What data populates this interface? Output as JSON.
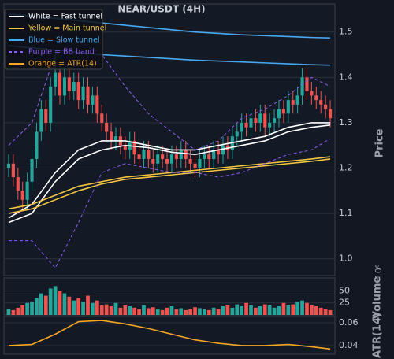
{
  "chart_data": {
    "type": "candlestick",
    "title": "NEAR/USDT (4H)",
    "y_label": "Price",
    "up_color": "#26a69a",
    "down_color": "#ef5350",
    "open": [
      1.2,
      1.21,
      1.18,
      1.15,
      1.13,
      1.17,
      1.22,
      1.28,
      1.33,
      1.3,
      1.38,
      1.41,
      1.36,
      1.4,
      1.37,
      1.39,
      1.35,
      1.38,
      1.34,
      1.36,
      1.32,
      1.3,
      1.28,
      1.26,
      1.27,
      1.25,
      1.24,
      1.26,
      1.23,
      1.22,
      1.24,
      1.22,
      1.21,
      1.23,
      1.22,
      1.21,
      1.23,
      1.22,
      1.24,
      1.22,
      1.21,
      1.2,
      1.22,
      1.23,
      1.22,
      1.24,
      1.23,
      1.25,
      1.24,
      1.27,
      1.28,
      1.3,
      1.29,
      1.31,
      1.3,
      1.32,
      1.29,
      1.3,
      1.31,
      1.33,
      1.32,
      1.35,
      1.34,
      1.36,
      1.4,
      1.37,
      1.36,
      1.35,
      1.34,
      1.33
    ],
    "high": [
      1.23,
      1.23,
      1.2,
      1.17,
      1.19,
      1.24,
      1.3,
      1.35,
      1.35,
      1.4,
      1.46,
      1.43,
      1.42,
      1.42,
      1.41,
      1.41,
      1.4,
      1.4,
      1.38,
      1.38,
      1.34,
      1.32,
      1.3,
      1.29,
      1.29,
      1.27,
      1.28,
      1.28,
      1.25,
      1.26,
      1.26,
      1.24,
      1.25,
      1.25,
      1.24,
      1.25,
      1.25,
      1.26,
      1.26,
      1.24,
      1.23,
      1.24,
      1.25,
      1.25,
      1.26,
      1.26,
      1.27,
      1.27,
      1.29,
      1.3,
      1.32,
      1.32,
      1.33,
      1.33,
      1.34,
      1.34,
      1.32,
      1.33,
      1.35,
      1.35,
      1.37,
      1.37,
      1.38,
      1.42,
      1.42,
      1.39,
      1.38,
      1.37,
      1.36,
      1.35
    ],
    "low": [
      1.18,
      1.16,
      1.13,
      1.11,
      1.11,
      1.15,
      1.2,
      1.26,
      1.28,
      1.28,
      1.36,
      1.34,
      1.34,
      1.35,
      1.35,
      1.33,
      1.33,
      1.32,
      1.32,
      1.3,
      1.28,
      1.26,
      1.24,
      1.24,
      1.23,
      1.22,
      1.22,
      1.21,
      1.2,
      1.2,
      1.2,
      1.19,
      1.19,
      1.2,
      1.19,
      1.19,
      1.2,
      1.2,
      1.2,
      1.19,
      1.18,
      1.18,
      1.2,
      1.2,
      1.2,
      1.21,
      1.21,
      1.22,
      1.22,
      1.25,
      1.26,
      1.27,
      1.27,
      1.28,
      1.28,
      1.27,
      1.27,
      1.28,
      1.29,
      1.3,
      1.3,
      1.32,
      1.32,
      1.34,
      1.35,
      1.34,
      1.33,
      1.32,
      1.31,
      1.29
    ],
    "close": [
      1.21,
      1.18,
      1.15,
      1.13,
      1.17,
      1.22,
      1.28,
      1.33,
      1.3,
      1.38,
      1.41,
      1.36,
      1.4,
      1.37,
      1.39,
      1.35,
      1.38,
      1.34,
      1.36,
      1.32,
      1.3,
      1.28,
      1.26,
      1.27,
      1.25,
      1.24,
      1.26,
      1.23,
      1.22,
      1.24,
      1.22,
      1.21,
      1.23,
      1.22,
      1.21,
      1.23,
      1.22,
      1.24,
      1.22,
      1.21,
      1.2,
      1.22,
      1.23,
      1.22,
      1.24,
      1.23,
      1.25,
      1.24,
      1.27,
      1.28,
      1.3,
      1.29,
      1.31,
      1.3,
      1.32,
      1.29,
      1.3,
      1.31,
      1.33,
      1.32,
      1.35,
      1.34,
      1.36,
      1.4,
      1.37,
      1.36,
      1.35,
      1.34,
      1.33,
      1.31
    ],
    "ylim": [
      0.963,
      1.562
    ],
    "yticks": [
      {
        "value": 1,
        "label": "1.0"
      },
      1.1,
      1.2,
      1.3,
      1.4,
      1.5
    ],
    "overlay_x": [
      0,
      5,
      10,
      15,
      20,
      25,
      30,
      35,
      40,
      45,
      50,
      55,
      60,
      65,
      69
    ],
    "overlays": [
      {
        "name": "White = Fast tunnel",
        "color": "#ffffff",
        "dashed": false,
        "lines": [
          [
            1.09,
            1.12,
            1.19,
            1.24,
            1.26,
            1.26,
            1.25,
            1.24,
            1.24,
            1.25,
            1.26,
            1.27,
            1.29,
            1.3,
            1.3
          ],
          [
            1.08,
            1.1,
            1.17,
            1.22,
            1.24,
            1.25,
            1.245,
            1.235,
            1.23,
            1.24,
            1.25,
            1.26,
            1.28,
            1.29,
            1.295
          ]
        ]
      },
      {
        "name": "Yellow = Main tunnel",
        "color": "#f5c542",
        "dashed": false,
        "lines": [
          [
            1.11,
            1.12,
            1.14,
            1.16,
            1.17,
            1.18,
            1.185,
            1.19,
            1.195,
            1.2,
            1.205,
            1.21,
            1.215,
            1.22,
            1.225
          ],
          [
            1.1,
            1.11,
            1.13,
            1.15,
            1.165,
            1.175,
            1.18,
            1.185,
            1.19,
            1.195,
            1.2,
            1.205,
            1.21,
            1.215,
            1.22
          ]
        ]
      },
      {
        "name": "Blue = Slow tunnel",
        "color": "#4aa8f0",
        "dashed": false,
        "lines": [
          [
            1.54,
            1.535,
            1.53,
            1.525,
            1.52,
            1.515,
            1.51,
            1.505,
            1.5,
            1.497,
            1.494,
            1.492,
            1.49,
            1.488,
            1.487
          ],
          [
            1.47,
            1.465,
            1.46,
            1.455,
            1.45,
            1.447,
            1.444,
            1.441,
            1.438,
            1.436,
            1.434,
            1.432,
            1.43,
            1.428,
            1.427
          ]
        ]
      },
      {
        "name": "Purple = BB band",
        "color": "#8a5cf0",
        "dashed": true,
        "lines": [
          [
            1.25,
            1.3,
            1.45,
            1.48,
            1.45,
            1.38,
            1.32,
            1.28,
            1.24,
            1.26,
            1.31,
            1.33,
            1.36,
            1.4,
            1.38
          ],
          [
            1.04,
            1.04,
            0.98,
            1.08,
            1.19,
            1.21,
            1.2,
            1.19,
            1.19,
            1.18,
            1.19,
            1.21,
            1.23,
            1.24,
            1.265
          ]
        ]
      }
    ],
    "volume": {
      "label": "Volume",
      "offset_label": "10⁶",
      "ylim": [
        0,
        77
      ],
      "yticks": [
        25,
        50
      ],
      "values": [
        12,
        10,
        15,
        20,
        25,
        28,
        35,
        45,
        40,
        55,
        60,
        50,
        45,
        38,
        30,
        35,
        28,
        40,
        25,
        30,
        20,
        22,
        18,
        25,
        15,
        20,
        18,
        15,
        12,
        20,
        14,
        16,
        12,
        10,
        15,
        18,
        12,
        14,
        10,
        12,
        16,
        14,
        12,
        10,
        15,
        12,
        18,
        20,
        15,
        22,
        18,
        25,
        20,
        15,
        18,
        22,
        20,
        15,
        18,
        25,
        20,
        22,
        28,
        30,
        25,
        20,
        18,
        15,
        12,
        10
      ]
    },
    "atr": {
      "name": "Orange = ATR(14)",
      "label": "ATR(14)",
      "color": "#f5a623",
      "ylim": [
        0.0324,
        0.0655
      ],
      "yticks": [
        0.04,
        0.06
      ],
      "values": [
        0.04,
        0.041,
        0.05,
        0.061,
        0.062,
        0.059,
        0.055,
        0.05,
        0.045,
        0.042,
        0.04,
        0.04,
        0.041,
        0.039,
        0.037
      ]
    }
  }
}
